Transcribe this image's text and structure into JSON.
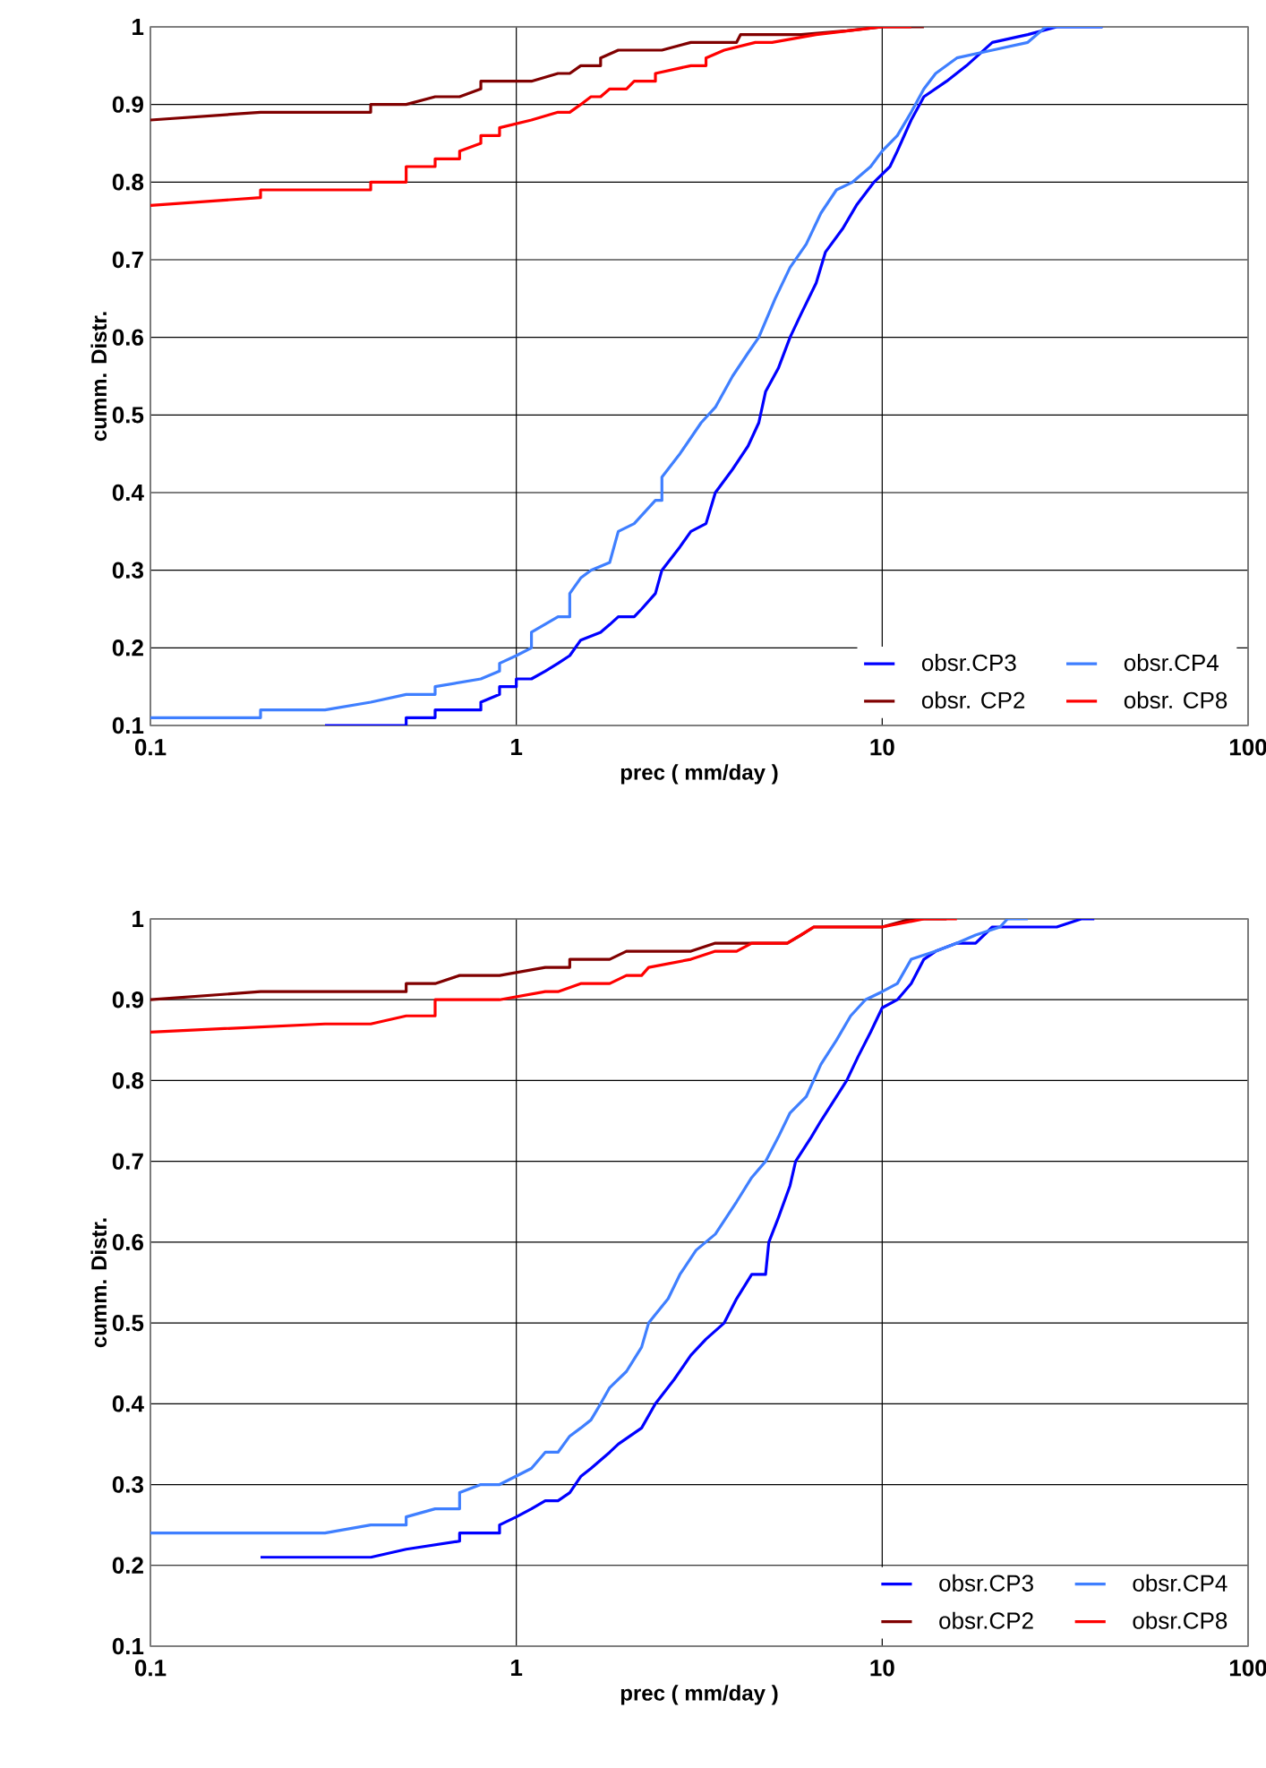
{
  "chart_data": [
    {
      "type": "line",
      "xlabel": "prec ( mm/day )",
      "ylabel": "cumm. Distr.",
      "log": "x",
      "grid": true,
      "legend": "bottom right",
      "line_style": "solid",
      "xlim": [
        0.1,
        100
      ],
      "xticks": [
        0.1,
        1,
        10,
        100
      ],
      "ylim": [
        0.1,
        1
      ],
      "yticks": [
        0.1,
        0.2,
        0.3,
        0.4,
        0.5,
        0.6,
        0.7,
        0.8,
        0.9,
        1
      ],
      "series": [
        {
          "name": "obsr.CP3",
          "color": "#0000ff",
          "x": [
            0.3,
            0.5,
            0.5,
            0.6,
            0.6,
            0.8,
            0.8,
            0.9,
            0.9,
            1.0,
            1.0,
            1.1,
            1.2,
            1.3,
            1.4,
            1.5,
            1.7,
            1.8,
            1.9,
            2.1,
            2.2,
            2.4,
            2.5,
            2.8,
            3.0,
            3.3,
            3.5,
            3.9,
            4.3,
            4.6,
            4.8,
            5.2,
            5.6,
            6.0,
            6.6,
            7.0,
            7.8,
            8.5,
            9.5,
            10.5,
            11,
            12,
            13,
            15,
            17,
            20,
            25,
            30,
            40
          ],
          "values": [
            0.1,
            0.1,
            0.11,
            0.11,
            0.12,
            0.12,
            0.13,
            0.14,
            0.15,
            0.15,
            0.16,
            0.16,
            0.17,
            0.18,
            0.19,
            0.21,
            0.22,
            0.23,
            0.24,
            0.24,
            0.25,
            0.27,
            0.3,
            0.33,
            0.35,
            0.36,
            0.4,
            0.43,
            0.46,
            0.49,
            0.53,
            0.56,
            0.6,
            0.63,
            0.67,
            0.71,
            0.74,
            0.77,
            0.8,
            0.82,
            0.84,
            0.88,
            0.91,
            0.93,
            0.95,
            0.98,
            0.99,
            1.0,
            1.0
          ]
        },
        {
          "name": "obsr.CP4",
          "color": "#3f7fff",
          "x": [
            0.1,
            0.2,
            0.2,
            0.3,
            0.4,
            0.5,
            0.6,
            0.6,
            0.8,
            0.9,
            0.9,
            1.0,
            1.1,
            1.1,
            1.3,
            1.4,
            1.4,
            1.5,
            1.6,
            1.8,
            1.9,
            2.1,
            2.4,
            2.5,
            2.5,
            2.8,
            3.2,
            3.5,
            3.9,
            4.3,
            4.6,
            5.1,
            5.6,
            6.2,
            6.8,
            7.5,
            8.3,
            9.3,
            10,
            11,
            12,
            13,
            14,
            16,
            20,
            25,
            28,
            40
          ],
          "values": [
            0.11,
            0.11,
            0.12,
            0.12,
            0.13,
            0.14,
            0.14,
            0.15,
            0.16,
            0.17,
            0.18,
            0.19,
            0.2,
            0.22,
            0.24,
            0.24,
            0.27,
            0.29,
            0.3,
            0.31,
            0.35,
            0.36,
            0.39,
            0.39,
            0.42,
            0.45,
            0.49,
            0.51,
            0.55,
            0.58,
            0.6,
            0.65,
            0.69,
            0.72,
            0.76,
            0.79,
            0.8,
            0.82,
            0.84,
            0.86,
            0.89,
            0.92,
            0.94,
            0.96,
            0.97,
            0.98,
            1.0,
            1.0
          ]
        },
        {
          "name": "obsr. CP2",
          "color": "#800000",
          "x": [
            0.1,
            0.2,
            0.4,
            0.4,
            0.5,
            0.6,
            0.7,
            0.8,
            0.8,
            1.0,
            1.1,
            1.3,
            1.4,
            1.5,
            1.7,
            1.7,
            1.9,
            2.5,
            3.0,
            4.0,
            4.1,
            6,
            8,
            10,
            13
          ],
          "values": [
            0.88,
            0.89,
            0.89,
            0.9,
            0.9,
            0.91,
            0.91,
            0.92,
            0.93,
            0.93,
            0.93,
            0.94,
            0.94,
            0.95,
            0.95,
            0.96,
            0.97,
            0.97,
            0.98,
            0.98,
            0.99,
            0.99,
            0.995,
            1.0,
            1.0
          ]
        },
        {
          "name": "obsr. CP8",
          "color": "#ff0000",
          "x": [
            0.1,
            0.2,
            0.2,
            0.4,
            0.4,
            0.5,
            0.5,
            0.6,
            0.6,
            0.7,
            0.7,
            0.8,
            0.8,
            0.9,
            0.9,
            1.1,
            1.3,
            1.4,
            1.5,
            1.6,
            1.7,
            1.8,
            2.0,
            2.1,
            2.4,
            2.4,
            3.0,
            3.3,
            3.3,
            3.7,
            4.5,
            5.0,
            6.6,
            10,
            12
          ],
          "values": [
            0.77,
            0.78,
            0.79,
            0.79,
            0.8,
            0.8,
            0.82,
            0.82,
            0.83,
            0.83,
            0.84,
            0.85,
            0.86,
            0.86,
            0.87,
            0.88,
            0.89,
            0.89,
            0.9,
            0.91,
            0.91,
            0.92,
            0.92,
            0.93,
            0.93,
            0.94,
            0.95,
            0.95,
            0.96,
            0.97,
            0.98,
            0.98,
            0.99,
            1.0,
            1.0
          ]
        }
      ]
    },
    {
      "type": "line",
      "xlabel": "prec ( mm/day )",
      "ylabel": "cumm. Distr.",
      "log": "x",
      "grid": true,
      "legend": "bottom right",
      "line_style": "solid",
      "xlim": [
        0.1,
        100
      ],
      "xticks": [
        0.1,
        1,
        10,
        100
      ],
      "ylim": [
        0.1,
        1
      ],
      "yticks": [
        0.1,
        0.2,
        0.3,
        0.4,
        0.5,
        0.6,
        0.7,
        0.8,
        0.9,
        1
      ],
      "series": [
        {
          "name": "obsr.CP3",
          "color": "#0000ff",
          "x": [
            0.2,
            0.4,
            0.5,
            0.7,
            0.7,
            0.9,
            0.9,
            1.0,
            1.1,
            1.2,
            1.3,
            1.4,
            1.5,
            1.6,
            1.8,
            1.9,
            2.2,
            2.4,
            2.7,
            3.0,
            3.3,
            3.7,
            4.0,
            4.4,
            4.8,
            4.9,
            5.2,
            5.6,
            5.8,
            6.4,
            6.8,
            7.5,
            8,
            8.6,
            9.3,
            10,
            11,
            12,
            13,
            14,
            16,
            18,
            20,
            30,
            35,
            38
          ],
          "values": [
            0.21,
            0.21,
            0.22,
            0.23,
            0.24,
            0.24,
            0.25,
            0.26,
            0.27,
            0.28,
            0.28,
            0.29,
            0.31,
            0.32,
            0.34,
            0.35,
            0.37,
            0.4,
            0.43,
            0.46,
            0.48,
            0.5,
            0.53,
            0.56,
            0.56,
            0.6,
            0.63,
            0.67,
            0.7,
            0.73,
            0.75,
            0.78,
            0.8,
            0.83,
            0.86,
            0.89,
            0.9,
            0.92,
            0.95,
            0.96,
            0.97,
            0.97,
            0.99,
            0.99,
            1.0,
            1.0
          ]
        },
        {
          "name": "obsr.CP4",
          "color": "#3f7fff",
          "x": [
            0.1,
            0.3,
            0.4,
            0.5,
            0.5,
            0.6,
            0.7,
            0.7,
            0.8,
            0.9,
            1.1,
            1.2,
            1.3,
            1.4,
            1.5,
            1.6,
            1.7,
            1.8,
            2.0,
            2.2,
            2.3,
            2.6,
            2.8,
            3.1,
            3.5,
            4.0,
            4.4,
            4.8,
            5.2,
            5.6,
            6.2,
            6.8,
            7.5,
            8.2,
            9,
            10,
            11,
            12,
            14,
            16,
            18,
            21,
            22,
            25
          ],
          "values": [
            0.24,
            0.24,
            0.25,
            0.25,
            0.26,
            0.27,
            0.27,
            0.29,
            0.3,
            0.3,
            0.32,
            0.34,
            0.34,
            0.36,
            0.37,
            0.38,
            0.4,
            0.42,
            0.44,
            0.47,
            0.5,
            0.53,
            0.56,
            0.59,
            0.61,
            0.65,
            0.68,
            0.7,
            0.73,
            0.76,
            0.78,
            0.82,
            0.85,
            0.88,
            0.9,
            0.91,
            0.92,
            0.95,
            0.96,
            0.97,
            0.98,
            0.99,
            1.0,
            1.0
          ]
        },
        {
          "name": "obsr.CP2",
          "color": "#800000",
          "x": [
            0.1,
            0.2,
            0.5,
            0.5,
            0.6,
            0.7,
            0.9,
            1.2,
            1.4,
            1.4,
            1.8,
            2.0,
            3.0,
            3.5,
            5.5,
            6,
            6.5,
            10,
            12,
            15
          ],
          "values": [
            0.9,
            0.91,
            0.91,
            0.92,
            0.92,
            0.93,
            0.93,
            0.94,
            0.94,
            0.95,
            0.95,
            0.96,
            0.96,
            0.97,
            0.97,
            0.98,
            0.99,
            0.99,
            1.0,
            1.0
          ]
        },
        {
          "name": "obsr.CP8",
          "color": "#ff0000",
          "x": [
            0.1,
            0.3,
            0.4,
            0.5,
            0.6,
            0.6,
            0.9,
            1.2,
            1.3,
            1.5,
            1.8,
            2.0,
            2.2,
            2.3,
            3.0,
            3.5,
            4.0,
            4.4,
            5.5,
            6.5,
            10,
            13,
            16
          ],
          "values": [
            0.86,
            0.87,
            0.87,
            0.88,
            0.88,
            0.9,
            0.9,
            0.91,
            0.91,
            0.92,
            0.92,
            0.93,
            0.93,
            0.94,
            0.95,
            0.96,
            0.96,
            0.97,
            0.97,
            0.99,
            0.99,
            1.0,
            1.0
          ]
        }
      ]
    }
  ]
}
